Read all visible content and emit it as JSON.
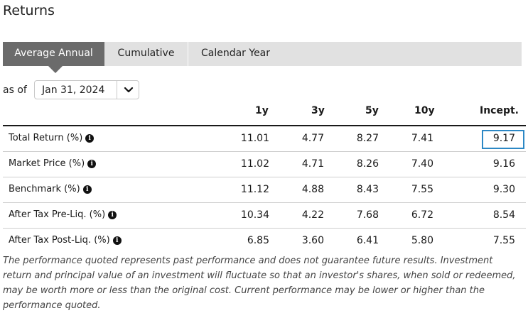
{
  "page": {
    "title": "Returns"
  },
  "tabs": [
    {
      "label": "Average Annual",
      "active": true
    },
    {
      "label": "Cumulative",
      "active": false
    },
    {
      "label": "Calendar Year",
      "active": false
    }
  ],
  "as_of": {
    "label": "as of",
    "value": "Jan 31, 2024"
  },
  "table": {
    "columns": [
      "1y",
      "3y",
      "5y",
      "10y",
      "Incept."
    ],
    "rows": [
      {
        "label": "Total Return (%)",
        "values": [
          "11.01",
          "4.77",
          "8.27",
          "7.41",
          "9.17"
        ]
      },
      {
        "label": "Market Price (%)",
        "values": [
          "11.02",
          "4.71",
          "8.26",
          "7.40",
          "9.16"
        ]
      },
      {
        "label": "Benchmark (%)",
        "values": [
          "11.12",
          "4.88",
          "8.43",
          "7.55",
          "9.30"
        ]
      },
      {
        "label": "After Tax Pre-Liq. (%)",
        "values": [
          "10.34",
          "4.22",
          "7.68",
          "6.72",
          "8.54"
        ]
      },
      {
        "label": "After Tax Post-Liq. (%)",
        "values": [
          "6.85",
          "3.60",
          "6.41",
          "5.80",
          "7.55"
        ]
      }
    ]
  },
  "disclaimer": "The performance quoted represents past performance and does not guarantee future results. Investment return and principal value of an investment will fluctuate so that an investor's shares, when sold or redeemed, may be worth more or less than the original cost. Current performance may be lower or higher than the performance quoted.",
  "colors": {
    "active_tab": "#6b6b6b",
    "tab_bar": "#e1e1e1",
    "highlight": "#2c88c5"
  }
}
